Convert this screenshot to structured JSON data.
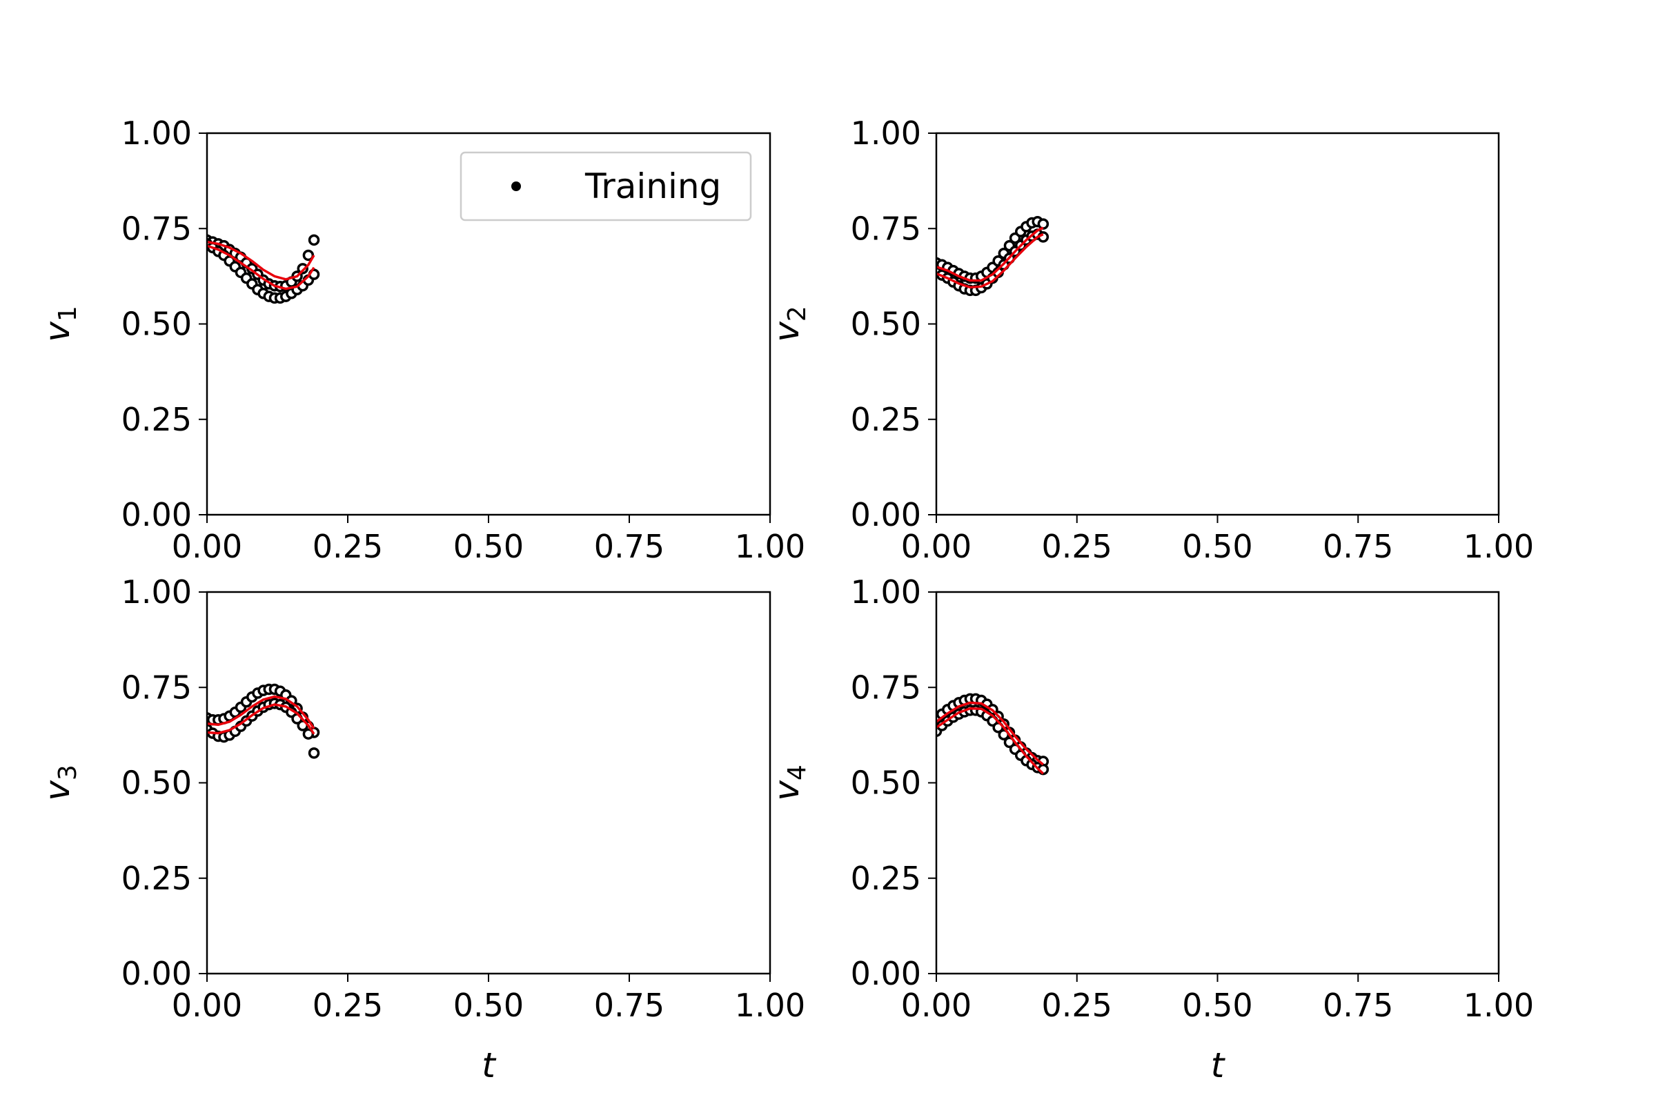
{
  "chart_data": [
    {
      "type": "scatter",
      "ylabel": "v",
      "ylabel_sub": "1",
      "xlabel": "",
      "xlim": [
        0,
        1
      ],
      "ylim": [
        0,
        1
      ],
      "xticks": [
        "0.00",
        "0.25",
        "0.50",
        "0.75",
        "1.00"
      ],
      "yticks": [
        "0.00",
        "0.25",
        "0.50",
        "0.75",
        "1.00"
      ],
      "legend": {
        "label": "Training",
        "position": "top-right"
      },
      "series": [
        {
          "kind": "markers",
          "x": [
            0.0,
            0.01,
            0.02,
            0.03,
            0.04,
            0.05,
            0.06,
            0.07,
            0.08,
            0.09,
            0.1,
            0.11,
            0.12,
            0.13,
            0.14,
            0.15,
            0.16,
            0.17,
            0.18,
            0.19
          ],
          "y": [
            0.72,
            0.715,
            0.71,
            0.705,
            0.695,
            0.685,
            0.675,
            0.66,
            0.645,
            0.63,
            0.615,
            0.605,
            0.6,
            0.598,
            0.6,
            0.61,
            0.625,
            0.645,
            0.68,
            0.72
          ]
        },
        {
          "kind": "markers",
          "x": [
            0.0,
            0.01,
            0.02,
            0.03,
            0.04,
            0.05,
            0.06,
            0.07,
            0.08,
            0.09,
            0.1,
            0.11,
            0.12,
            0.13,
            0.14,
            0.15,
            0.16,
            0.17,
            0.18,
            0.19
          ],
          "y": [
            0.71,
            0.7,
            0.69,
            0.68,
            0.665,
            0.65,
            0.635,
            0.62,
            0.605,
            0.59,
            0.58,
            0.572,
            0.568,
            0.568,
            0.572,
            0.58,
            0.59,
            0.6,
            0.615,
            0.63
          ]
        },
        {
          "kind": "line",
          "color": "#e8000b",
          "x": [
            0.0,
            0.02,
            0.04,
            0.06,
            0.08,
            0.1,
            0.12,
            0.14,
            0.16,
            0.18,
            0.19
          ],
          "y": [
            0.715,
            0.71,
            0.7,
            0.685,
            0.665,
            0.642,
            0.625,
            0.617,
            0.625,
            0.655,
            0.68
          ]
        },
        {
          "kind": "line",
          "color": "#e8000b",
          "x": [
            0.0,
            0.02,
            0.04,
            0.06,
            0.08,
            0.1,
            0.12,
            0.14,
            0.16,
            0.18,
            0.19
          ],
          "y": [
            0.705,
            0.695,
            0.68,
            0.66,
            0.64,
            0.618,
            0.6,
            0.592,
            0.598,
            0.625,
            0.648
          ]
        }
      ]
    },
    {
      "type": "scatter",
      "ylabel": "v",
      "ylabel_sub": "2",
      "xlabel": "",
      "xlim": [
        0,
        1
      ],
      "ylim": [
        0,
        1
      ],
      "xticks": [
        "0.00",
        "0.25",
        "0.50",
        "0.75",
        "1.00"
      ],
      "yticks": [
        "0.00",
        "0.25",
        "0.50",
        "0.75",
        "1.00"
      ],
      "series": [
        {
          "kind": "markers",
          "x": [
            0.0,
            0.01,
            0.02,
            0.03,
            0.04,
            0.05,
            0.06,
            0.07,
            0.08,
            0.09,
            0.1,
            0.11,
            0.12,
            0.13,
            0.14,
            0.15,
            0.16,
            0.17,
            0.18,
            0.19
          ],
          "y": [
            0.66,
            0.655,
            0.648,
            0.64,
            0.632,
            0.625,
            0.62,
            0.62,
            0.625,
            0.635,
            0.648,
            0.665,
            0.685,
            0.705,
            0.725,
            0.742,
            0.755,
            0.765,
            0.768,
            0.762
          ]
        },
        {
          "kind": "markers",
          "x": [
            0.0,
            0.01,
            0.02,
            0.03,
            0.04,
            0.05,
            0.06,
            0.07,
            0.08,
            0.09,
            0.1,
            0.11,
            0.12,
            0.13,
            0.14,
            0.15,
            0.16,
            0.17,
            0.18,
            0.19
          ],
          "y": [
            0.635,
            0.628,
            0.62,
            0.61,
            0.6,
            0.592,
            0.588,
            0.588,
            0.595,
            0.605,
            0.62,
            0.635,
            0.655,
            0.672,
            0.69,
            0.706,
            0.72,
            0.73,
            0.735,
            0.728
          ]
        },
        {
          "kind": "line",
          "color": "#e8000b",
          "x": [
            0.0,
            0.02,
            0.04,
            0.06,
            0.08,
            0.1,
            0.12,
            0.14,
            0.16,
            0.18,
            0.19
          ],
          "y": [
            0.65,
            0.64,
            0.625,
            0.614,
            0.614,
            0.63,
            0.658,
            0.69,
            0.72,
            0.745,
            0.752
          ]
        },
        {
          "kind": "line",
          "color": "#e8000b",
          "x": [
            0.0,
            0.02,
            0.04,
            0.06,
            0.08,
            0.1,
            0.12,
            0.14,
            0.16,
            0.18,
            0.19
          ],
          "y": [
            0.632,
            0.62,
            0.606,
            0.596,
            0.598,
            0.612,
            0.64,
            0.672,
            0.702,
            0.728,
            0.735
          ]
        }
      ]
    },
    {
      "type": "scatter",
      "ylabel": "v",
      "ylabel_sub": "3",
      "xlabel": "t",
      "xlim": [
        0,
        1
      ],
      "ylim": [
        0,
        1
      ],
      "xticks": [
        "0.00",
        "0.25",
        "0.50",
        "0.75",
        "1.00"
      ],
      "yticks": [
        "0.00",
        "0.25",
        "0.50",
        "0.75",
        "1.00"
      ],
      "series": [
        {
          "kind": "markers",
          "x": [
            0.0,
            0.01,
            0.02,
            0.03,
            0.04,
            0.05,
            0.06,
            0.07,
            0.08,
            0.09,
            0.1,
            0.11,
            0.12,
            0.13,
            0.14,
            0.15,
            0.16,
            0.17,
            0.18,
            0.19
          ],
          "y": [
            0.67,
            0.665,
            0.665,
            0.668,
            0.675,
            0.685,
            0.698,
            0.712,
            0.725,
            0.735,
            0.742,
            0.745,
            0.745,
            0.74,
            0.73,
            0.715,
            0.695,
            0.672,
            0.648,
            0.632
          ]
        },
        {
          "kind": "markers",
          "x": [
            0.0,
            0.01,
            0.02,
            0.03,
            0.04,
            0.05,
            0.06,
            0.07,
            0.08,
            0.09,
            0.1,
            0.11,
            0.12,
            0.13,
            0.14,
            0.15,
            0.16,
            0.17,
            0.18,
            0.19
          ],
          "y": [
            0.64,
            0.63,
            0.622,
            0.62,
            0.625,
            0.635,
            0.648,
            0.662,
            0.675,
            0.688,
            0.698,
            0.705,
            0.708,
            0.705,
            0.698,
            0.685,
            0.668,
            0.65,
            0.628,
            0.578
          ]
        },
        {
          "kind": "line",
          "color": "#e8000b",
          "x": [
            0.0,
            0.02,
            0.04,
            0.06,
            0.08,
            0.1,
            0.12,
            0.14,
            0.16,
            0.18,
            0.19
          ],
          "y": [
            0.655,
            0.652,
            0.66,
            0.678,
            0.7,
            0.718,
            0.726,
            0.72,
            0.7,
            0.665,
            0.642
          ]
        },
        {
          "kind": "line",
          "color": "#e8000b",
          "x": [
            0.0,
            0.02,
            0.04,
            0.06,
            0.08,
            0.1,
            0.12,
            0.14,
            0.16,
            0.18,
            0.19
          ],
          "y": [
            0.632,
            0.63,
            0.638,
            0.655,
            0.677,
            0.696,
            0.705,
            0.7,
            0.682,
            0.65,
            0.628
          ]
        }
      ]
    },
    {
      "type": "scatter",
      "ylabel": "v",
      "ylabel_sub": "4",
      "xlabel": "t",
      "xlim": [
        0,
        1
      ],
      "ylim": [
        0,
        1
      ],
      "xticks": [
        "0.00",
        "0.25",
        "0.50",
        "0.75",
        "1.00"
      ],
      "yticks": [
        "0.00",
        "0.25",
        "0.50",
        "0.75",
        "1.00"
      ],
      "series": [
        {
          "kind": "markers",
          "x": [
            0.0,
            0.01,
            0.02,
            0.03,
            0.04,
            0.05,
            0.06,
            0.07,
            0.08,
            0.09,
            0.1,
            0.11,
            0.12,
            0.13,
            0.14,
            0.15,
            0.16,
            0.17,
            0.18,
            0.19
          ],
          "y": [
            0.665,
            0.68,
            0.692,
            0.702,
            0.71,
            0.716,
            0.72,
            0.72,
            0.716,
            0.706,
            0.692,
            0.674,
            0.654,
            0.632,
            0.612,
            0.594,
            0.578,
            0.566,
            0.558,
            0.556
          ]
        },
        {
          "kind": "markers",
          "x": [
            0.0,
            0.01,
            0.02,
            0.03,
            0.04,
            0.05,
            0.06,
            0.07,
            0.08,
            0.09,
            0.1,
            0.11,
            0.12,
            0.13,
            0.14,
            0.15,
            0.16,
            0.17,
            0.18,
            0.19
          ],
          "y": [
            0.635,
            0.65,
            0.662,
            0.672,
            0.68,
            0.686,
            0.69,
            0.69,
            0.686,
            0.676,
            0.662,
            0.645,
            0.626,
            0.606,
            0.588,
            0.572,
            0.558,
            0.548,
            0.54,
            0.535
          ]
        },
        {
          "kind": "line",
          "color": "#e8000b",
          "x": [
            0.0,
            0.02,
            0.04,
            0.06,
            0.08,
            0.1,
            0.12,
            0.14,
            0.16,
            0.18,
            0.19
          ],
          "y": [
            0.66,
            0.682,
            0.7,
            0.71,
            0.708,
            0.69,
            0.66,
            0.622,
            0.588,
            0.56,
            0.548
          ]
        },
        {
          "kind": "line",
          "color": "#e8000b",
          "x": [
            0.0,
            0.02,
            0.04,
            0.06,
            0.08,
            0.1,
            0.12,
            0.14,
            0.16,
            0.18,
            0.19
          ],
          "y": [
            0.645,
            0.665,
            0.684,
            0.695,
            0.694,
            0.676,
            0.645,
            0.606,
            0.57,
            0.538,
            0.524
          ]
        }
      ]
    }
  ]
}
